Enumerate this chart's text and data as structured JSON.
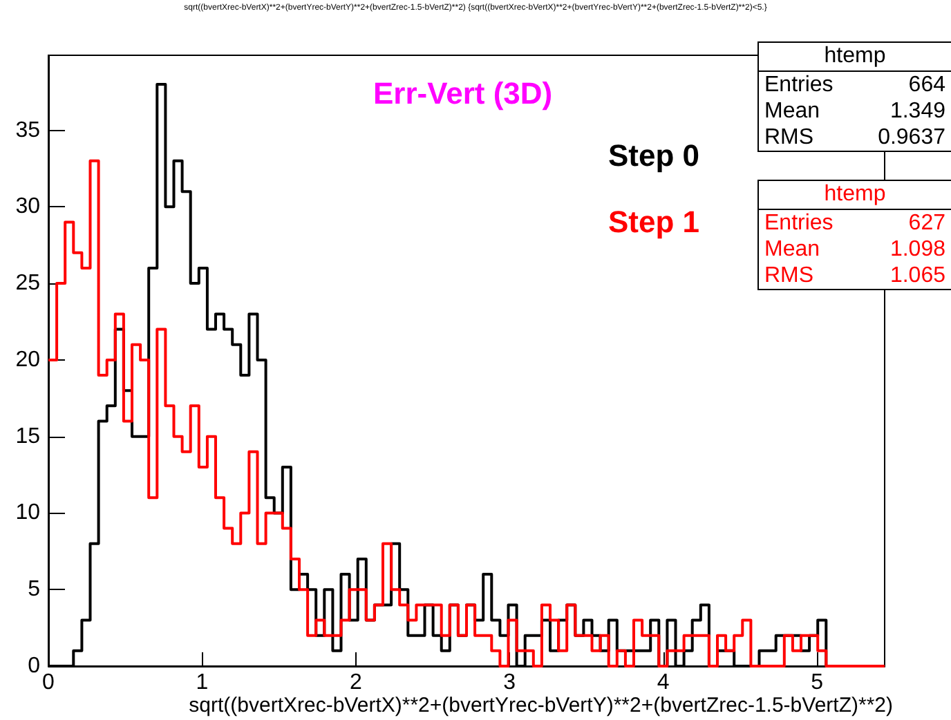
{
  "chart_data": {
    "type": "histogram",
    "title": "sqrt((bvertXrec-bVertX)**2+(bvertYrec-bVertY)**2+(bvertZrec-1.5-bVertZ)**2) {sqrt((bvertXrec-bVertX)**2+(bvertYrec-bVertY)**2+(bvertZrec-1.5-bVertZ)**2)<5.}",
    "xlabel": "sqrt((bvertXrec-bVertX)**2+(bvertYrec-bVertY)**2+(bvertZrec-1.5-bVertZ)**2)",
    "annotations": [
      "Err-Vert (3D)",
      "htemp\nEntries 664\nMean 1.349\nRMS 0.9637",
      "htemp\nEntries 627\nMean 1.098\nRMS 1.065"
    ],
    "bins": [
      0,
      0.0544,
      0.1088,
      0.1632,
      0.2176,
      0.272,
      0.3264,
      0.3808,
      0.4352,
      0.4896,
      0.544,
      0.5984,
      0.6528,
      0.7072,
      0.7616,
      0.816,
      0.8704,
      0.9248,
      0.9792,
      1.0336,
      1.088,
      1.1424,
      1.1968,
      1.2512,
      1.3056,
      1.36,
      1.4144,
      1.4688,
      1.5232,
      1.5776,
      1.632,
      1.6864,
      1.7408,
      1.7952,
      1.8496,
      1.904,
      1.9584,
      2.0128,
      2.0672,
      2.1216,
      2.176,
      2.2304,
      2.2848,
      2.3392,
      2.3936,
      2.448,
      2.5024,
      2.5568,
      2.6112,
      2.6656,
      2.72,
      2.7744,
      2.8288,
      2.8832,
      2.9376,
      2.992,
      3.0464,
      3.1008,
      3.1552,
      3.2096,
      3.264,
      3.3184,
      3.3728,
      3.4272,
      3.4816,
      3.536,
      3.5904,
      3.6448,
      3.6992,
      3.7536,
      3.808,
      3.8624,
      3.9168,
      3.9712,
      4.0256,
      4.08,
      4.1344,
      4.1888,
      4.2432,
      4.2976,
      4.352,
      4.4064,
      4.4608,
      4.5152,
      4.5696,
      4.624,
      4.6784,
      4.7328,
      4.7872,
      4.8416,
      4.896,
      4.9504,
      5.0048,
      5.0592,
      5.1136,
      5.168,
      5.2224,
      5.2768,
      5.3312,
      5.3856,
      5.44
    ],
    "series": [
      {
        "name": "Step 0",
        "color": "#000000",
        "values": [
          0,
          0,
          0,
          1,
          3,
          8,
          16,
          17,
          22,
          18,
          15,
          15,
          26,
          38,
          30,
          33,
          31,
          25,
          26,
          22,
          23,
          22,
          21,
          19,
          23,
          20,
          11,
          10,
          13,
          5,
          6,
          5,
          2,
          5,
          1,
          6,
          3,
          7,
          3,
          4,
          4,
          8,
          5,
          2,
          2,
          4,
          2,
          1,
          4,
          2,
          4,
          3,
          6,
          3,
          2,
          4,
          0,
          2,
          2,
          3,
          1,
          3,
          4,
          2,
          3,
          2,
          1,
          3,
          1,
          1,
          1,
          1,
          3,
          0,
          3,
          0,
          1,
          3,
          4,
          0,
          1,
          1,
          0,
          0,
          0,
          1,
          1,
          2,
          2,
          2,
          1,
          2,
          3,
          0,
          0,
          0,
          0,
          0,
          0,
          0
        ]
      },
      {
        "name": "Step 1",
        "color": "#ff0000",
        "values": [
          20,
          25,
          29,
          27,
          26,
          33,
          19,
          20,
          23,
          16,
          21,
          20,
          11,
          22,
          17,
          15,
          14,
          17,
          13,
          15,
          11,
          9,
          8,
          10,
          14,
          8,
          10,
          10,
          9,
          7,
          5,
          2,
          3,
          2,
          2,
          3,
          5,
          5,
          3,
          4,
          8,
          5,
          4,
          3,
          4,
          4,
          4,
          2,
          4,
          2,
          4,
          2,
          2,
          1,
          0,
          3,
          1,
          1,
          0,
          4,
          3,
          1,
          4,
          2,
          2,
          1,
          2,
          0,
          1,
          0,
          3,
          2,
          2,
          0,
          1,
          1,
          2,
          2,
          2,
          0,
          2,
          1,
          2,
          3,
          0,
          0,
          0,
          0,
          2,
          1,
          2,
          2,
          1,
          0,
          0,
          0,
          0,
          0,
          0,
          0
        ]
      }
    ],
    "xlim": [
      0,
      5.44
    ],
    "xticks": [
      0,
      1,
      2,
      3,
      4,
      5
    ],
    "ylim": [
      0,
      39.9
    ],
    "yticks": [
      0,
      5,
      10,
      15,
      20,
      25,
      30,
      35
    ],
    "grid": false,
    "legend": false,
    "marker": "none",
    "line_style": "solid"
  }
}
